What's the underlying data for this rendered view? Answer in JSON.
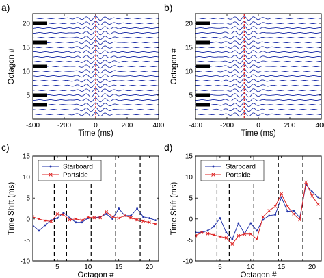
{
  "chart_data": [
    {
      "panel_label": "a)",
      "type": "line",
      "xlabel": "Time (ms)",
      "ylabel": "Octagon #",
      "xlim": [
        -400,
        400
      ],
      "ylim": [
        0,
        22
      ],
      "xticks": [
        "-400",
        "-200",
        "0",
        "200",
        "400"
      ],
      "yticks": [
        "5",
        "10",
        "15",
        "20"
      ],
      "traces": {
        "count": 21,
        "start": 1,
        "color": "#2233aa",
        "center_ms": 0,
        "period_ms": 60,
        "envelope_ms": 110
      },
      "marker_line": {
        "x": 0,
        "color": "#dd2222",
        "style": "dashed"
      },
      "highlighted_octagons": [
        3,
        5,
        11,
        16,
        20
      ]
    },
    {
      "panel_label": "b)",
      "type": "line",
      "xlabel": "Time (ms)",
      "ylabel": "Octagon #",
      "xlim": [
        -400,
        400
      ],
      "ylim": [
        0,
        22
      ],
      "xticks": [
        "-400",
        "-200",
        "0",
        "200",
        "400"
      ],
      "yticks": [
        "5",
        "10",
        "15",
        "20"
      ],
      "traces": {
        "count": 21,
        "start": 1,
        "color": "#2233aa",
        "center_ms": -90,
        "period_ms": 60,
        "envelope_ms": 110
      },
      "marker_line": {
        "x": -90,
        "color": "#dd2222",
        "style": "dashed"
      },
      "highlighted_octagons": [
        3,
        5,
        11,
        16,
        20
      ]
    },
    {
      "panel_label": "c)",
      "type": "line",
      "xlabel": "Octagon #",
      "ylabel": "Time Shift (ms)",
      "xlim": [
        1,
        21.5
      ],
      "ylim": [
        -10,
        15
      ],
      "xticks": [
        "5",
        "10",
        "15",
        "20"
      ],
      "yticks": [
        "-10",
        "-5",
        "0",
        "5",
        "10",
        "15"
      ],
      "vlines": [
        4.5,
        6.5,
        10.5,
        14.5,
        18.5
      ],
      "legend": "top-left",
      "x": [
        1,
        2,
        3,
        4,
        5,
        6,
        7,
        8,
        9,
        10,
        11,
        12,
        13,
        14,
        15,
        16,
        17,
        18,
        19,
        20,
        21
      ],
      "series": [
        {
          "name": "Starboard",
          "color": "#2233aa",
          "marker": "dot",
          "values": [
            -1.5,
            -2.8,
            -1.5,
            -0.3,
            0.2,
            1.5,
            0.3,
            -0.8,
            -0.8,
            0.2,
            0.3,
            0.5,
            1.2,
            0.0,
            2.5,
            0.8,
            0.8,
            2.5,
            0.5,
            0.2,
            -0.3
          ]
        },
        {
          "name": "Portside",
          "color": "#dd2222",
          "marker": "x",
          "values": [
            0.5,
            0.0,
            -0.4,
            -0.6,
            1.2,
            1.0,
            -0.2,
            0.0,
            -0.3,
            0.4,
            0.3,
            0.3,
            1.7,
            0.5,
            0.2,
            0.8,
            0.3,
            -0.2,
            -0.5,
            -0.8,
            -1.2
          ]
        }
      ]
    },
    {
      "panel_label": "d)",
      "type": "line",
      "xlabel": "Octagon #",
      "ylabel": "Time Shift (ms)",
      "xlim": [
        1,
        21.5
      ],
      "ylim": [
        -10,
        15
      ],
      "xticks": [
        "5",
        "10",
        "15",
        "20"
      ],
      "yticks": [
        "-10",
        "-5",
        "0",
        "5",
        "10",
        "15"
      ],
      "vlines": [
        4.5,
        6.5,
        10.5,
        14.5,
        18.5
      ],
      "legend": "top-left",
      "x": [
        1,
        2,
        3,
        4,
        5,
        6,
        7,
        8,
        9,
        10,
        11,
        12,
        13,
        14,
        15,
        16,
        17,
        18,
        19,
        20,
        21
      ],
      "series": [
        {
          "name": "Starboard",
          "color": "#2233aa",
          "marker": "dot",
          "values": [
            -3.2,
            -3.2,
            -2.8,
            -1.8,
            0.2,
            -3.2,
            -4.8,
            -1.0,
            -3.5,
            -1.0,
            -2.8,
            -0.2,
            0.8,
            1.0,
            5.2,
            1.8,
            2.0,
            0.3,
            8.2,
            6.5,
            5.2
          ]
        },
        {
          "name": "Portside",
          "color": "#dd2222",
          "marker": "x",
          "values": [
            -4.0,
            -3.2,
            -3.5,
            -3.8,
            -4.2,
            -4.5,
            -6.0,
            -4.0,
            -3.6,
            -3.6,
            -4.8,
            0.5,
            2.0,
            3.0,
            6.0,
            3.0,
            1.2,
            -0.2,
            8.8,
            5.5,
            3.5
          ]
        }
      ]
    }
  ]
}
